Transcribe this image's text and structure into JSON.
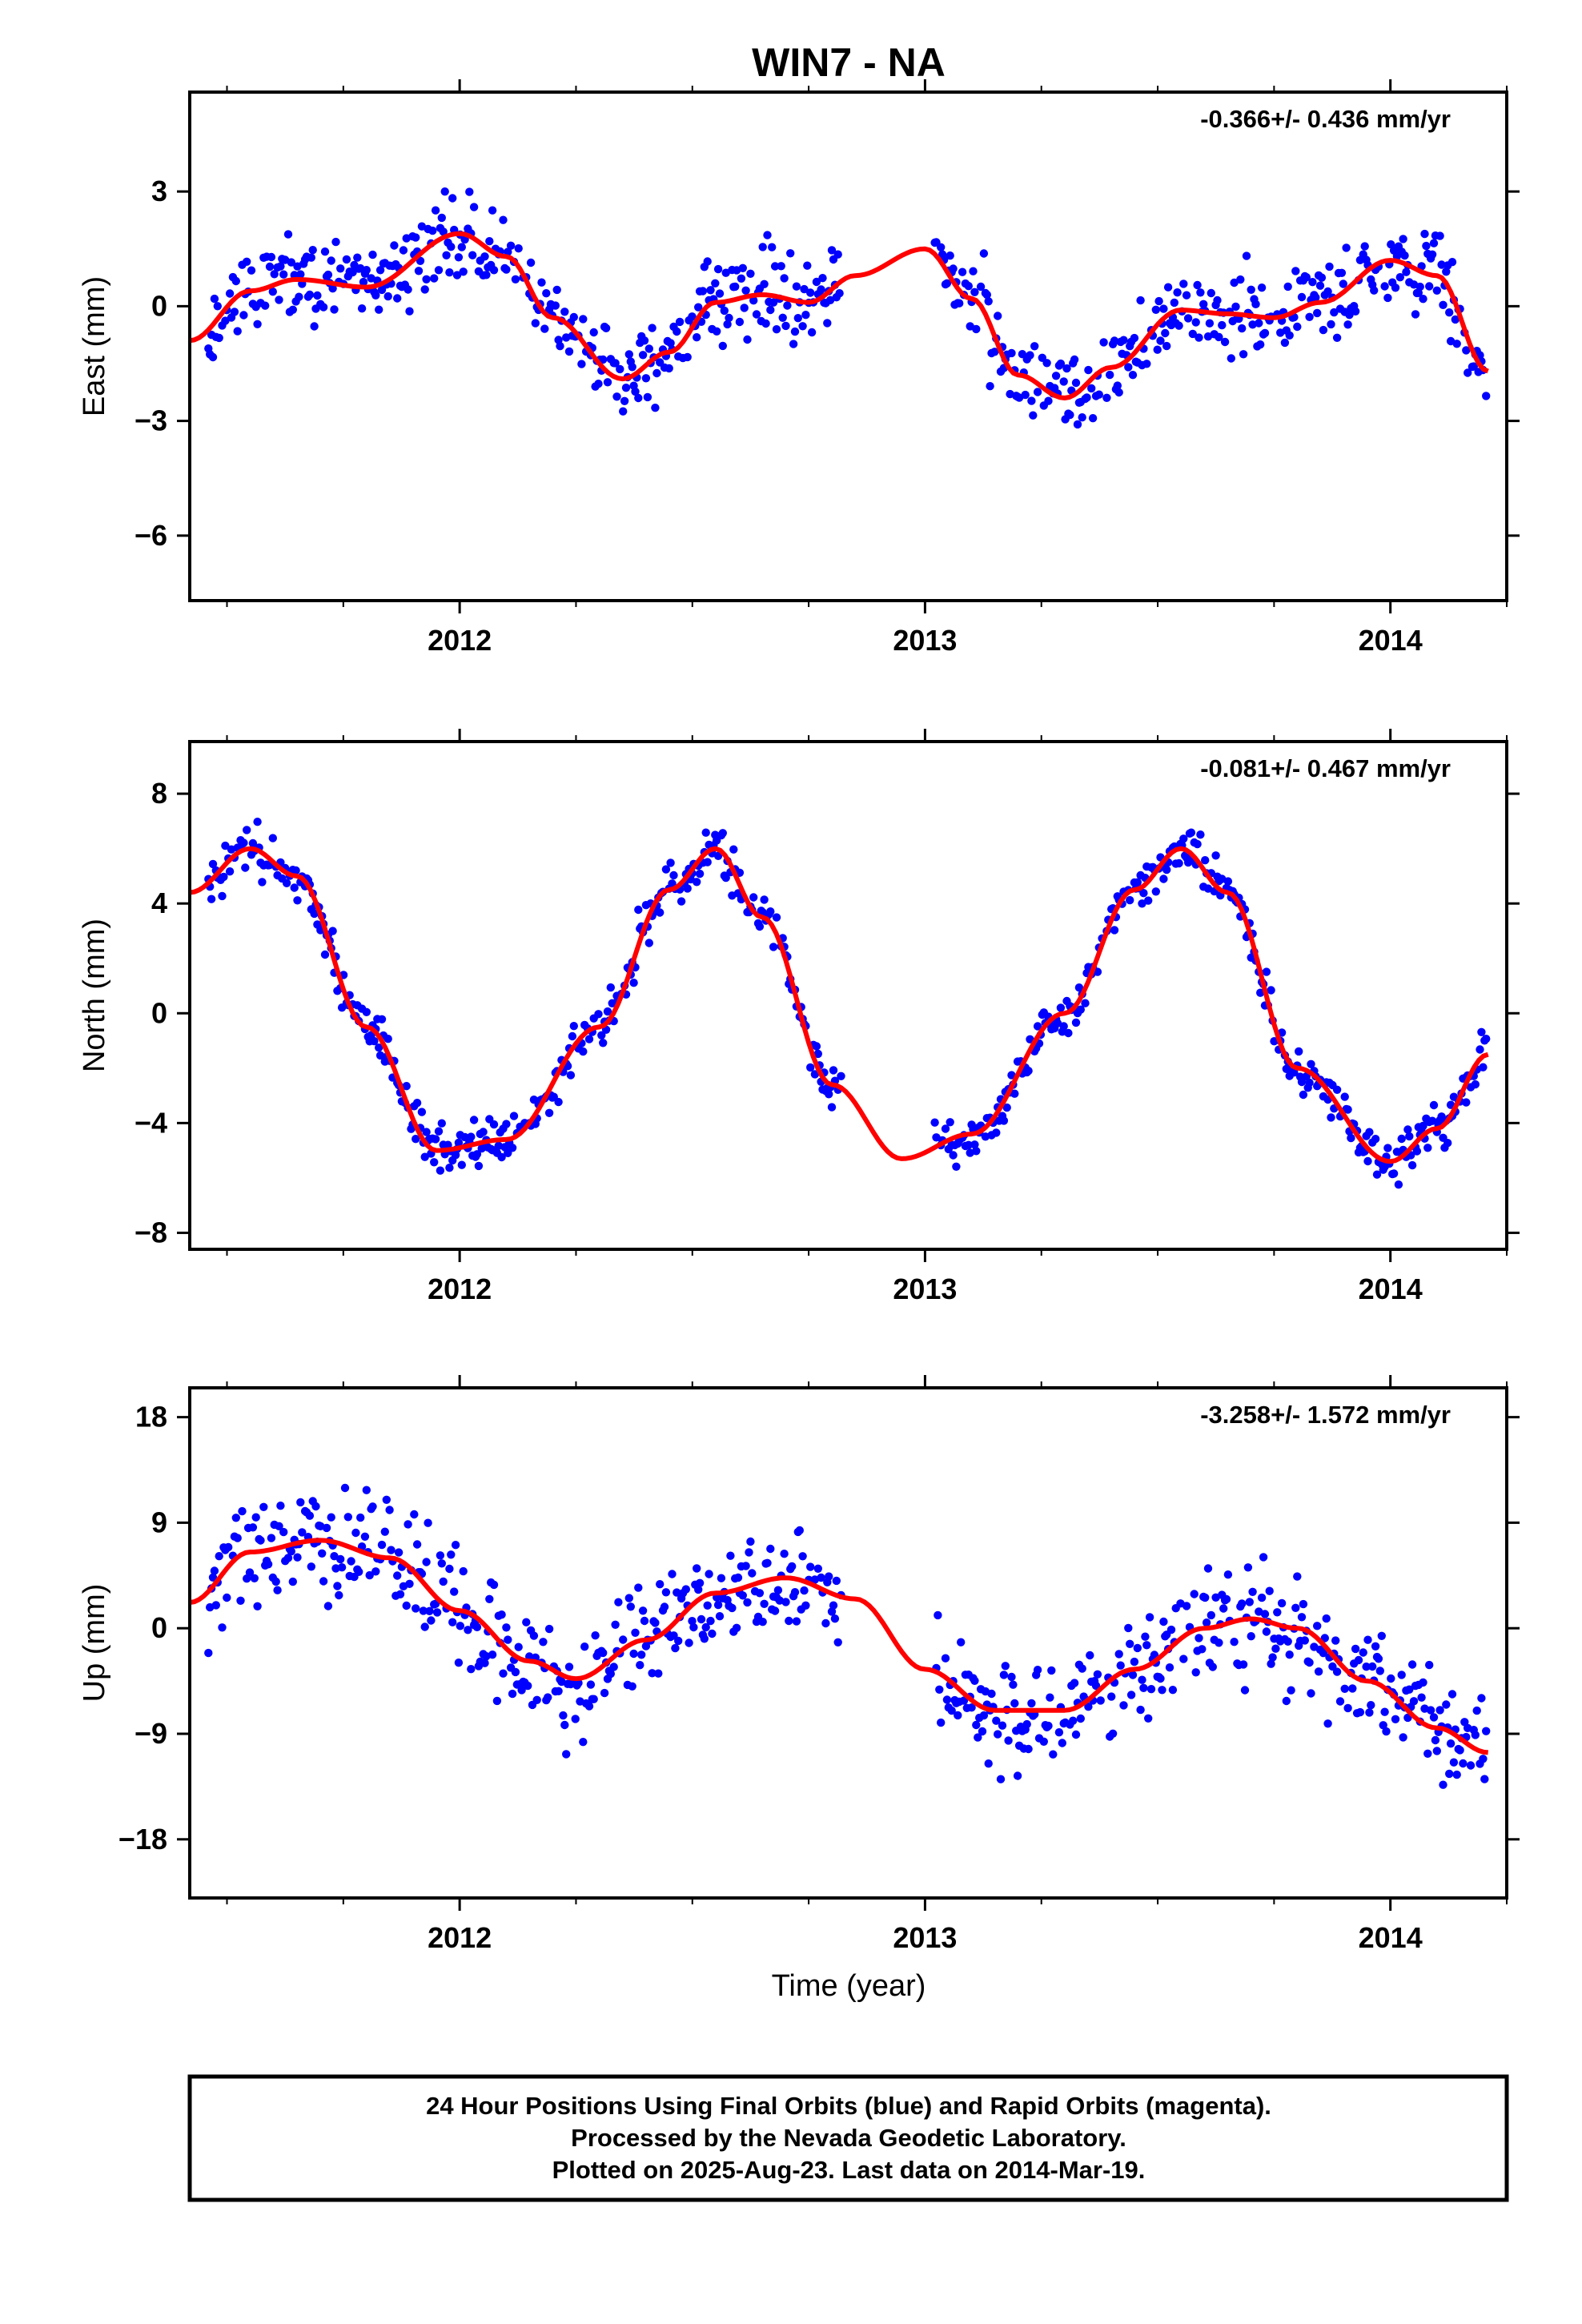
{
  "title": "WIN7 - NA",
  "colors": {
    "final_orbits": "#0000ff",
    "model_fit": "#ff0000",
    "frame": "#000000"
  },
  "chart_data": [
    {
      "type": "scatter",
      "ylabel": "East (mm)",
      "rate_text": "-0.366+/- 0.436 mm/yr",
      "xlim": [
        2011.42,
        2014.25
      ],
      "ylim": [
        -7.7,
        5.6
      ],
      "x_ticks": [
        2012,
        2013,
        2014
      ],
      "y_ticks": [
        3,
        0,
        -3,
        -6
      ],
      "y_tick_labels": [
        "3",
        "0",
        "−3",
        "−6"
      ],
      "series": [
        {
          "role": "final-orbit-positions",
          "x_range": [
            2011.46,
            2014.21
          ],
          "gap": [
            2012.82,
            2013.02
          ],
          "noise_mm": 1.0,
          "seed": 11
        },
        {
          "role": "model-fit",
          "x": [
            2011.42,
            2011.55,
            2011.65,
            2011.8,
            2012.0,
            2012.1,
            2012.2,
            2012.35,
            2012.45,
            2012.55,
            2012.65,
            2012.75,
            2012.85,
            2013.0,
            2013.1,
            2013.2,
            2013.3,
            2013.4,
            2013.55,
            2013.65,
            2013.75,
            2013.85,
            2014.0,
            2014.1,
            2014.21
          ],
          "y": [
            -0.9,
            0.4,
            0.7,
            0.5,
            1.9,
            1.3,
            -0.3,
            -1.9,
            -1.2,
            0.1,
            0.3,
            0.1,
            0.8,
            1.5,
            0.2,
            -1.8,
            -2.4,
            -1.6,
            -0.1,
            -0.2,
            -0.3,
            0.1,
            1.2,
            0.8,
            -1.7
          ]
        }
      ]
    },
    {
      "type": "scatter",
      "ylabel": "North (mm)",
      "rate_text": "-0.081+/- 0.467 mm/yr",
      "xlim": [
        2011.42,
        2014.25
      ],
      "ylim": [
        -8.6,
        9.9
      ],
      "x_ticks": [
        2012,
        2013,
        2014
      ],
      "y_ticks": [
        8,
        4,
        0,
        -4,
        -8
      ],
      "y_tick_labels": [
        "8",
        "4",
        "0",
        "−4",
        "−8"
      ],
      "series": [
        {
          "role": "final-orbit-positions",
          "x_range": [
            2011.46,
            2014.21
          ],
          "gap": [
            2012.82,
            2013.02
          ],
          "noise_mm": 0.8,
          "seed": 23
        },
        {
          "role": "model-fit",
          "x": [
            2011.42,
            2011.55,
            2011.65,
            2011.8,
            2011.95,
            2012.1,
            2012.3,
            2012.45,
            2012.55,
            2012.65,
            2012.8,
            2012.95,
            2013.1,
            2013.3,
            2013.45,
            2013.55,
            2013.65,
            2013.8,
            2014.0,
            2014.1,
            2014.21
          ],
          "y": [
            4.4,
            6.0,
            5.0,
            -0.5,
            -5.0,
            -4.6,
            -0.5,
            4.5,
            6.0,
            3.5,
            -2.6,
            -5.3,
            -4.4,
            0.0,
            4.5,
            6.0,
            4.4,
            -2.0,
            -5.4,
            -4.2,
            -1.5
          ]
        }
      ]
    },
    {
      "type": "scatter",
      "ylabel": "Up (mm)",
      "xlabel": "Time (year)",
      "rate_text": "-3.258+/- 1.572 mm/yr",
      "xlim": [
        2011.42,
        2014.25
      ],
      "ylim": [
        -23,
        20.5
      ],
      "x_ticks": [
        2012,
        2013,
        2014
      ],
      "y_ticks": [
        18,
        9,
        0,
        -9,
        -18
      ],
      "y_tick_labels": [
        "18",
        "9",
        "0",
        "−9",
        "−18"
      ],
      "series": [
        {
          "role": "final-orbit-positions",
          "x_range": [
            2011.46,
            2014.21
          ],
          "gap": [
            2012.82,
            2013.02
          ],
          "noise_mm": 4.5,
          "seed": 37
        },
        {
          "role": "model-fit",
          "x": [
            2011.42,
            2011.55,
            2011.7,
            2011.85,
            2012.0,
            2012.15,
            2012.25,
            2012.4,
            2012.55,
            2012.7,
            2012.85,
            2013.0,
            2013.15,
            2013.3,
            2013.45,
            2013.6,
            2013.7,
            2013.8,
            2013.95,
            2014.1,
            2014.21
          ],
          "y": [
            2.2,
            6.5,
            7.5,
            6.0,
            1.5,
            -2.8,
            -4.3,
            -1.0,
            3.0,
            4.3,
            2.5,
            -3.5,
            -7.0,
            -7.0,
            -3.5,
            0.0,
            0.8,
            0.0,
            -4.5,
            -8.5,
            -10.6
          ]
        }
      ]
    }
  ],
  "footer": {
    "line1": "24 Hour Positions Using Final Orbits (blue) and Rapid Orbits (magenta).",
    "line2": "Processed by the Nevada Geodetic Laboratory.",
    "line3": "Plotted on 2025-Aug-23. Last data on 2014-Mar-19."
  }
}
